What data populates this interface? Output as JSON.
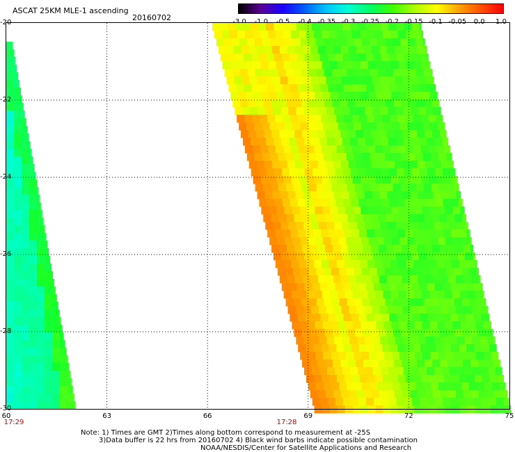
{
  "header": {
    "title": "ASCAT 25KM MLE-1 ascending",
    "date": "20160702"
  },
  "colorbar": {
    "labels": [
      "-3.0",
      "-1.0",
      "-0.5",
      "-0.4",
      "-0.35",
      "-0.3",
      "-0.25",
      "-0.2",
      "-0.15",
      "-0.1",
      "-0.05",
      "0.0",
      "1.0"
    ],
    "colors": [
      "#000000",
      "#5a0095",
      "#1a00ff",
      "#0060ff",
      "#00c8ff",
      "#00ffd0",
      "#00ff60",
      "#40ff00",
      "#b0ff00",
      "#ffff00",
      "#ffa000",
      "#ff5000",
      "#ff0000"
    ]
  },
  "map": {
    "lat_labels": [
      "-20",
      "-22",
      "-24",
      "-26",
      "-28",
      "-30"
    ],
    "lon_labels": [
      "60",
      "63",
      "66",
      "69",
      "72",
      "75"
    ],
    "time_labels": [
      "17:29",
      "17:28"
    ]
  },
  "notes": {
    "line1": "Note: 1) Times are GMT 2)Times along bottom correspond to measurement at -25S",
    "line2": "3)Data buffer is 22 hrs from 20160702 4) Black wind barbs indicate possible contamination",
    "line3": "NOAA/NESDIS/Center for Satellite Applications and Research"
  }
}
